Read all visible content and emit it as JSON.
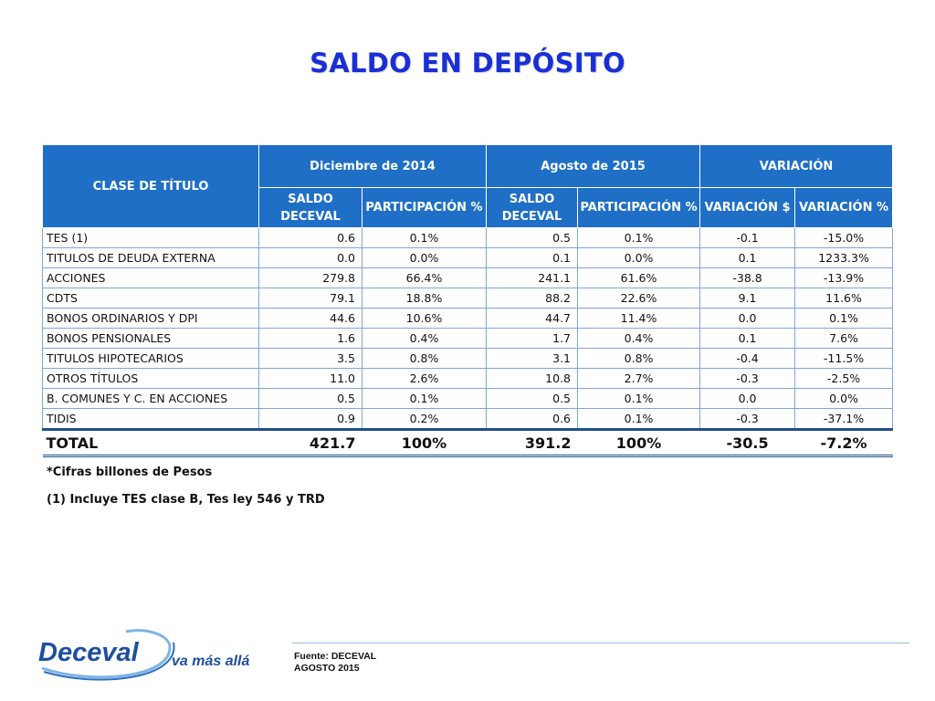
{
  "title": "SALDO EN DEPÓSITO",
  "table": {
    "header": {
      "clase": "CLASE DE TÍTULO",
      "group1": "Diciembre de 2014",
      "group2": "Agosto de 2015",
      "group3": "VARIACIÓN",
      "saldo_line1": "SALDO",
      "saldo_line2": "DECEVAL",
      "participacion": "PARTICIPACIÓN %",
      "variacion_pesos": "VARIACIÓN $",
      "variacion_pct": "VARIACIÓN %"
    },
    "rows": [
      {
        "clase": "TES (1)",
        "saldo_dic": "0.6",
        "part_dic": "0.1%",
        "saldo_ago": "0.5",
        "part_ago": "0.1%",
        "var_pesos": "-0.1",
        "var_pct": "-15.0%"
      },
      {
        "clase": "TITULOS DE DEUDA EXTERNA",
        "saldo_dic": "0.0",
        "part_dic": "0.0%",
        "saldo_ago": "0.1",
        "part_ago": "0.0%",
        "var_pesos": "0.1",
        "var_pct": "1233.3%"
      },
      {
        "clase": "ACCIONES",
        "saldo_dic": "279.8",
        "part_dic": "66.4%",
        "saldo_ago": "241.1",
        "part_ago": "61.6%",
        "var_pesos": "-38.8",
        "var_pct": "-13.9%"
      },
      {
        "clase": "CDTS",
        "saldo_dic": "79.1",
        "part_dic": "18.8%",
        "saldo_ago": "88.2",
        "part_ago": "22.6%",
        "var_pesos": "9.1",
        "var_pct": "11.6%"
      },
      {
        "clase": "BONOS ORDINARIOS Y DPI",
        "saldo_dic": "44.6",
        "part_dic": "10.6%",
        "saldo_ago": "44.7",
        "part_ago": "11.4%",
        "var_pesos": "0.0",
        "var_pct": "0.1%"
      },
      {
        "clase": "BONOS PENSIONALES",
        "saldo_dic": "1.6",
        "part_dic": "0.4%",
        "saldo_ago": "1.7",
        "part_ago": "0.4%",
        "var_pesos": "0.1",
        "var_pct": "7.6%"
      },
      {
        "clase": "TITULOS HIPOTECARIOS",
        "saldo_dic": "3.5",
        "part_dic": "0.8%",
        "saldo_ago": "3.1",
        "part_ago": "0.8%",
        "var_pesos": "-0.4",
        "var_pct": "-11.5%"
      },
      {
        "clase": "OTROS TÍTULOS",
        "saldo_dic": "11.0",
        "part_dic": "2.6%",
        "saldo_ago": "10.8",
        "part_ago": "2.7%",
        "var_pesos": "-0.3",
        "var_pct": "-2.5%"
      },
      {
        "clase": "B. COMUNES Y C. EN ACCIONES",
        "saldo_dic": "0.5",
        "part_dic": "0.1%",
        "saldo_ago": "0.5",
        "part_ago": "0.1%",
        "var_pesos": "0.0",
        "var_pct": "0.0%"
      },
      {
        "clase": "TIDIS",
        "saldo_dic": "0.9",
        "part_dic": "0.2%",
        "saldo_ago": "0.6",
        "part_ago": "0.1%",
        "var_pesos": "-0.3",
        "var_pct": "-37.1%"
      }
    ],
    "total": {
      "clase": "TOTAL",
      "saldo_dic": "421.7",
      "part_dic": "100%",
      "saldo_ago": "391.2",
      "part_ago": "100%",
      "var_pesos": "-30.5",
      "var_pct": "-7.2%"
    }
  },
  "notes": {
    "cifras": "*Cifras billones de Pesos",
    "tes": "(1) Incluye TES clase B, Tes ley 546 y TRD"
  },
  "footer": {
    "logo_text": "Deceval",
    "tagline": "va más allá",
    "source_line1": "Fuente: DECEVAL",
    "source_line2": "AGOSTO 2015"
  },
  "colors": {
    "title": "#1a2fd6",
    "header_bg": "#1f6fc6",
    "logo_blue": "#1d4f9e"
  }
}
